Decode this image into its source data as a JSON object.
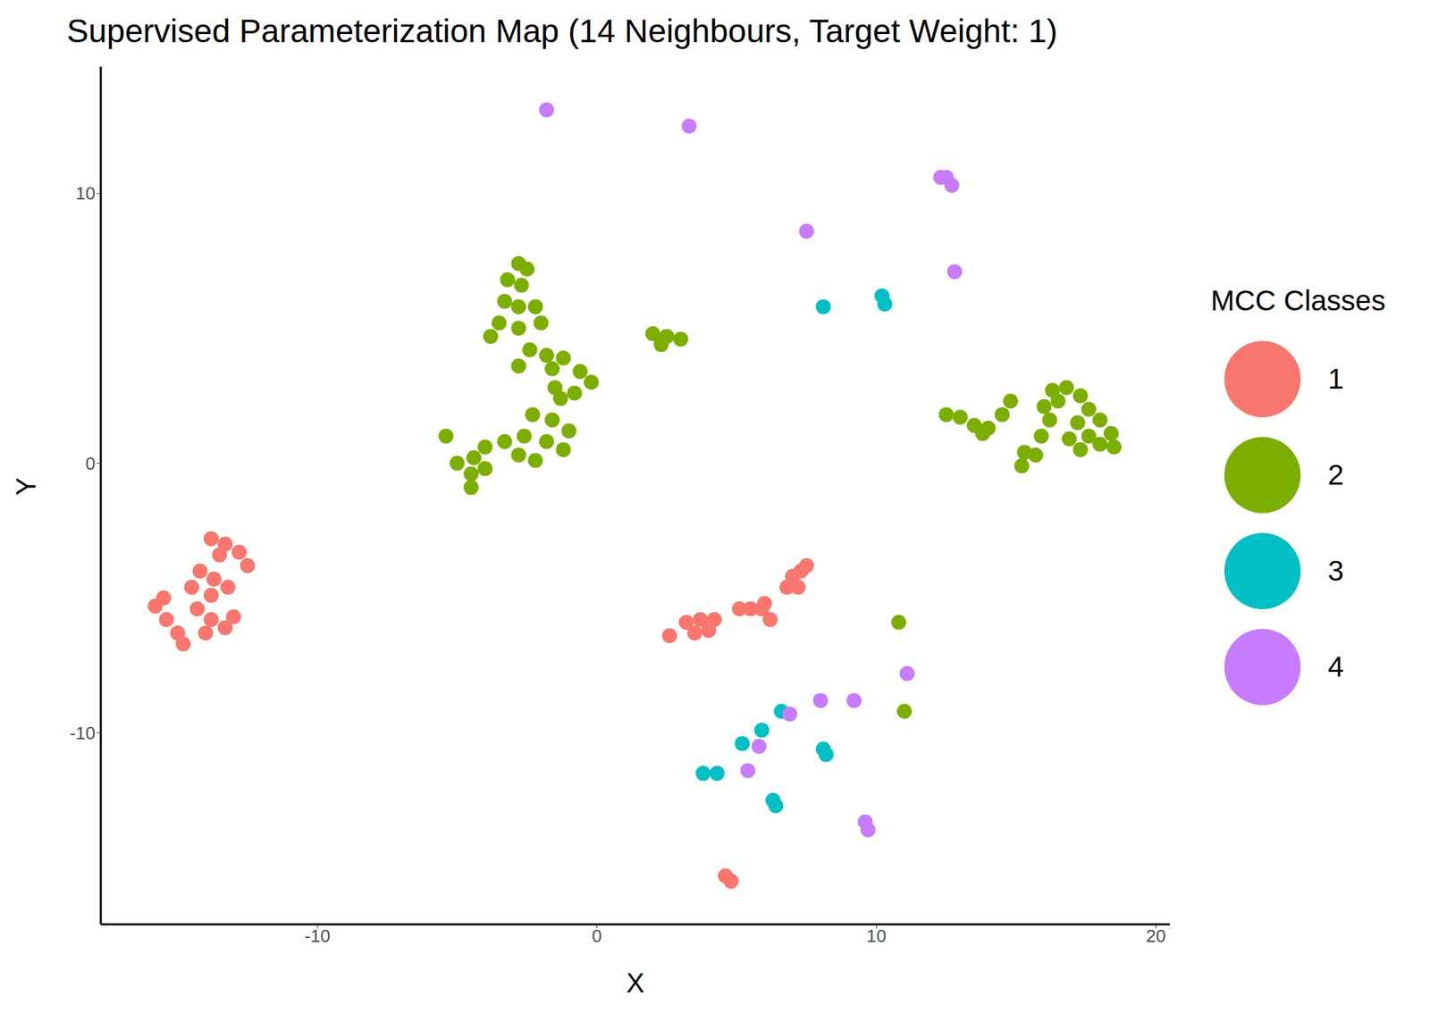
{
  "chart_data": {
    "type": "scatter",
    "title": "Supervised Parameterization Map (14 Neighbours, Target Weight: 1)",
    "x_label": "X",
    "y_label": "Y",
    "legend_title": "MCC Classes",
    "xlim": [
      -17.75,
      20.5
    ],
    "ylim": [
      -17.1,
      14.7
    ],
    "xticks": [
      -10,
      0,
      10,
      20
    ],
    "yticks": [
      -10,
      0,
      10
    ],
    "grid": false,
    "legend": "right",
    "marker": "circle",
    "series": [
      {
        "name": "1",
        "color": "#F8766D",
        "x": [
          -13.8,
          -13.3,
          -12.8,
          -12.5,
          -13.5,
          -14.2,
          -13.7,
          -13.2,
          -14.5,
          -13.8,
          -15.8,
          -15.4,
          -15.0,
          -14.8,
          -15.5,
          -14.3,
          -13.8,
          -13.3,
          -13.0,
          -14.0,
          3.2,
          3.7,
          4.2,
          3.5,
          4.0,
          2.6,
          5.1,
          5.5,
          5.9,
          6.2,
          6.0,
          7.0,
          7.3,
          7.2,
          6.8,
          7.5,
          4.6,
          4.8
        ],
        "y": [
          -2.8,
          -3.0,
          -3.3,
          -3.8,
          -3.4,
          -4.0,
          -4.3,
          -4.6,
          -4.6,
          -4.9,
          -5.3,
          -5.8,
          -6.3,
          -6.7,
          -5.0,
          -5.4,
          -5.8,
          -6.1,
          -5.7,
          -6.3,
          -5.9,
          -5.8,
          -5.8,
          -6.3,
          -6.2,
          -6.4,
          -5.4,
          -5.4,
          -5.4,
          -5.8,
          -5.2,
          -4.2,
          -4.0,
          -4.6,
          -4.6,
          -3.8,
          -15.3,
          -15.5
        ]
      },
      {
        "name": "2",
        "color": "#7CAE00",
        "x": [
          -2.8,
          -2.5,
          -3.2,
          -2.7,
          -3.3,
          -2.8,
          -2.2,
          -3.5,
          -2.8,
          -2.0,
          -3.8,
          -2.4,
          -1.8,
          -1.2,
          -2.8,
          -1.6,
          -0.6,
          -0.2,
          -0.8,
          -1.3,
          -1.5,
          -2.3,
          -1.6,
          -1.0,
          -2.6,
          -1.8,
          -1.2,
          -2.8,
          -2.2,
          -3.3,
          -4.0,
          -4.4,
          -5.0,
          -4.5,
          -4.0,
          -4.5,
          -5.4,
          2.0,
          2.5,
          3.0,
          2.3,
          12.5,
          13.0,
          13.5,
          14.0,
          14.5,
          14.8,
          13.8,
          15.3,
          15.7,
          15.2,
          15.9,
          16.2,
          16.5,
          16.8,
          16.3,
          16.0,
          17.3,
          17.6,
          18.0,
          18.4,
          17.2,
          17.6,
          18.0,
          18.5,
          17.3,
          16.9,
          10.8,
          11.0
        ],
        "y": [
          7.4,
          7.2,
          6.8,
          6.6,
          6.0,
          5.8,
          5.8,
          5.2,
          5.0,
          5.2,
          4.7,
          4.2,
          4.0,
          3.9,
          3.6,
          3.5,
          3.4,
          3.0,
          2.6,
          2.4,
          2.8,
          1.8,
          1.6,
          1.2,
          1.0,
          0.8,
          0.5,
          0.3,
          0.1,
          0.8,
          0.6,
          0.2,
          0.0,
          -0.4,
          -0.2,
          -0.9,
          1.0,
          4.8,
          4.7,
          4.6,
          4.4,
          1.8,
          1.7,
          1.4,
          1.3,
          1.8,
          2.3,
          1.1,
          0.4,
          0.3,
          -0.1,
          1.0,
          1.6,
          2.3,
          2.8,
          2.7,
          2.1,
          2.5,
          2.0,
          1.6,
          1.1,
          1.5,
          1.0,
          0.7,
          0.6,
          0.5,
          0.9,
          -5.9,
          -9.2
        ]
      },
      {
        "name": "3",
        "color": "#00BFC4",
        "x": [
          10.2,
          10.3,
          8.1,
          8.1,
          8.2,
          6.3,
          6.4,
          3.8,
          4.3,
          5.2,
          5.9,
          6.6
        ],
        "y": [
          6.2,
          5.9,
          5.8,
          -10.6,
          -10.8,
          -12.5,
          -12.7,
          -11.5,
          -11.5,
          -10.4,
          -9.9,
          -9.2
        ]
      },
      {
        "name": "4",
        "color": "#C77CFF",
        "x": [
          -1.8,
          3.3,
          12.3,
          12.7,
          12.5,
          7.5,
          12.8,
          9.6,
          9.7,
          11.1,
          9.2,
          6.9,
          5.8,
          5.4,
          8.0
        ],
        "y": [
          13.1,
          12.5,
          10.6,
          10.3,
          10.6,
          8.6,
          7.1,
          -13.3,
          -13.6,
          -7.8,
          -8.8,
          -9.3,
          -10.5,
          -11.4,
          -8.8
        ]
      }
    ]
  }
}
